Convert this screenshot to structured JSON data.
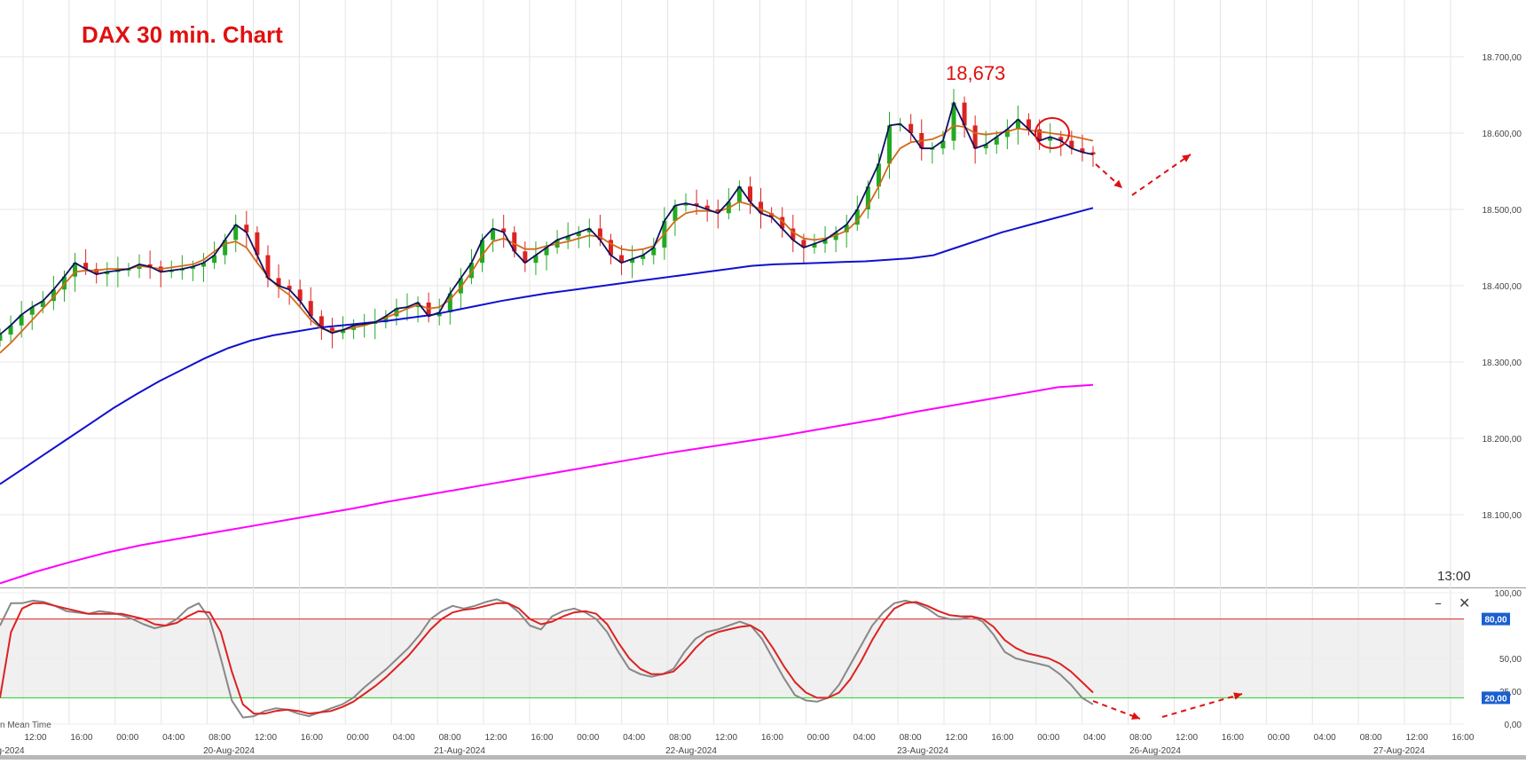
{
  "title": "DAX 30 min. Chart",
  "peak_label": "18,673",
  "time_label": "13:00",
  "footer_note": "n Mean Time",
  "chart_data": [
    {
      "type": "candlestick",
      "pane": "price",
      "title": "DAX 30 min. Chart",
      "annotations": [
        "18,673"
      ],
      "ylim": [
        18010,
        18750
      ],
      "y_ticks": [
        "18.100,00",
        "18.200,00",
        "18.300,00",
        "18.400,00",
        "18.500,00",
        "18.600,00",
        "18.700,00"
      ],
      "y_tick_values": [
        18100,
        18200,
        18300,
        18400,
        18500,
        18600,
        18700
      ],
      "x_tick_labels": [
        "12:00",
        "16:00",
        "00:00",
        "04:00",
        "08:00",
        "12:00",
        "16:00",
        "00:00",
        "04:00",
        "08:00",
        "12:00",
        "16:00",
        "00:00",
        "04:00",
        "08:00",
        "12:00",
        "16:00",
        "00:00",
        "04:00",
        "08:00",
        "12:00",
        "16:00",
        "00:00",
        "04:00",
        "08:00",
        "12:00",
        "16:00",
        "00:00",
        "04:00",
        "08:00",
        "12:00",
        "16:00"
      ],
      "date_labels": [
        "g-2024",
        "20-Aug-2024",
        "21-Aug-2024",
        "22-Aug-2024",
        "23-Aug-2024",
        "26-Aug-2024",
        "27-Aug-2024"
      ],
      "colors": {
        "up": "#22aa22",
        "down": "#dd2222",
        "wick": "#555555",
        "short_ma": "#101060",
        "mid_ma": "#d06b1d",
        "ma_long": "#1010d0",
        "ma_longest": "#ff00ff",
        "annotation": "#e01010"
      },
      "series": [
        {
          "name": "",
          "color": "#101060",
          "role": "close-line",
          "values": [
            18336,
            18348,
            18362,
            18372,
            18380,
            18395,
            18412,
            18430,
            18422,
            18415,
            18418,
            18420,
            18422,
            18428,
            18425,
            18418,
            18420,
            18422,
            18425,
            18430,
            18440,
            18460,
            18480,
            18470,
            18440,
            18410,
            18400,
            18395,
            18380,
            18360,
            18345,
            18338,
            18342,
            18348,
            18350,
            18352,
            18360,
            18370,
            18372,
            18378,
            18360,
            18365,
            18390,
            18410,
            18430,
            18460,
            18475,
            18470,
            18445,
            18430,
            18440,
            18450,
            18460,
            18465,
            18470,
            18475,
            18460,
            18440,
            18430,
            18435,
            18440,
            18450,
            18485,
            18505,
            18508,
            18505,
            18500,
            18495,
            18510,
            18530,
            18510,
            18495,
            18490,
            18475,
            18460,
            18450,
            18455,
            18460,
            18470,
            18480,
            18500,
            18530,
            18560,
            18610,
            18612,
            18600,
            18580,
            18580,
            18590,
            18640,
            18610,
            18580,
            18585,
            18595,
            18605,
            18618,
            18605,
            18590,
            18595,
            18590,
            18580,
            18575,
            18572
          ]
        },
        {
          "name": "",
          "color": "#d06b1d",
          "role": "short-ma",
          "values": [
            18312,
            18325,
            18340,
            18355,
            18370,
            18385,
            18402,
            18418,
            18420,
            18420,
            18422,
            18422,
            18422,
            18426,
            18424,
            18422,
            18424,
            18426,
            18428,
            18434,
            18445,
            18455,
            18458,
            18450,
            18430,
            18412,
            18398,
            18388,
            18372,
            18355,
            18344,
            18340,
            18342,
            18345,
            18348,
            18352,
            18358,
            18364,
            18370,
            18375,
            18370,
            18372,
            18382,
            18398,
            18418,
            18440,
            18458,
            18462,
            18455,
            18448,
            18448,
            18452,
            18455,
            18458,
            18462,
            18466,
            18464,
            18455,
            18448,
            18446,
            18448,
            18452,
            18468,
            18485,
            18495,
            18498,
            18498,
            18497,
            18502,
            18510,
            18506,
            18500,
            18494,
            18485,
            18470,
            18462,
            18460,
            18462,
            18466,
            18472,
            18485,
            18505,
            18530,
            18560,
            18580,
            18588,
            18590,
            18592,
            18598,
            18610,
            18608,
            18600,
            18598,
            18600,
            18602,
            18606,
            18604,
            18602,
            18600,
            18598,
            18596,
            18593,
            18590
          ]
        },
        {
          "name": "",
          "color": "#1010d0",
          "role": "long-ma",
          "values": [
            18140,
            18160,
            18180,
            18200,
            18220,
            18240,
            18258,
            18275,
            18290,
            18305,
            18318,
            18328,
            18335,
            18340,
            18345,
            18348,
            18351,
            18354,
            18358,
            18362,
            18368,
            18374,
            18380,
            18385,
            18390,
            18394,
            18398,
            18402,
            18406,
            18410,
            18414,
            18418,
            18422,
            18426,
            18428,
            18429,
            18430,
            18431,
            18432,
            18434,
            18436,
            18440,
            18450,
            18460,
            18470,
            18478,
            18486,
            18494,
            18502
          ]
        },
        {
          "name": "",
          "color": "#ff00ff",
          "role": "longest-ma",
          "values": [
            18010,
            18025,
            18038,
            18050,
            18060,
            18068,
            18076,
            18084,
            18092,
            18100,
            18108,
            18117,
            18125,
            18133,
            18141,
            18149,
            18157,
            18165,
            18173,
            18181,
            18188,
            18195,
            18202,
            18210,
            18218,
            18226,
            18235,
            18243,
            18251,
            18259,
            18267,
            18270
          ]
        }
      ]
    },
    {
      "type": "line",
      "pane": "stochastic",
      "ylim": [
        0,
        100
      ],
      "y_ticks": [
        "0,00",
        "25,00",
        "50,00",
        "100,00"
      ],
      "y_tick_values": [
        0,
        25,
        50,
        100
      ],
      "levels": [
        {
          "label": "80,00",
          "value": 80,
          "color": "#dd2222"
        },
        {
          "label": "20,00",
          "value": 20,
          "color": "#22cc22"
        }
      ],
      "series": [
        {
          "name": "",
          "color": "#888888",
          "values": [
            75,
            92,
            92,
            94,
            93,
            90,
            86,
            85,
            84,
            86,
            85,
            83,
            80,
            76,
            73,
            75,
            80,
            88,
            92,
            80,
            50,
            18,
            5,
            6,
            10,
            12,
            11,
            8,
            6,
            9,
            12,
            15,
            20,
            28,
            35,
            42,
            50,
            58,
            68,
            80,
            86,
            90,
            88,
            90,
            93,
            95,
            92,
            85,
            75,
            72,
            82,
            86,
            88,
            85,
            80,
            70,
            55,
            42,
            38,
            36,
            38,
            42,
            55,
            65,
            70,
            72,
            75,
            78,
            75,
            65,
            50,
            35,
            22,
            18,
            17,
            20,
            30,
            45,
            60,
            75,
            85,
            92,
            94,
            92,
            88,
            82,
            80,
            80,
            82,
            78,
            68,
            55,
            50,
            48,
            46,
            44,
            38,
            30,
            20,
            15
          ]
        },
        {
          "name": "",
          "color": "#dd2222",
          "values": [
            20,
            70,
            88,
            92,
            92,
            90,
            88,
            86,
            84,
            84,
            84,
            84,
            82,
            80,
            76,
            75,
            77,
            82,
            86,
            85,
            70,
            40,
            15,
            8,
            8,
            10,
            11,
            10,
            8,
            9,
            10,
            13,
            17,
            23,
            29,
            36,
            44,
            52,
            62,
            72,
            80,
            85,
            87,
            88,
            90,
            92,
            92,
            88,
            80,
            76,
            78,
            82,
            85,
            86,
            84,
            76,
            62,
            50,
            42,
            38,
            38,
            40,
            48,
            58,
            66,
            70,
            72,
            74,
            75,
            70,
            58,
            44,
            32,
            24,
            20,
            20,
            24,
            34,
            48,
            64,
            78,
            88,
            92,
            93,
            90,
            86,
            83,
            82,
            82,
            80,
            74,
            64,
            58,
            54,
            52,
            50,
            46,
            40,
            32,
            24
          ]
        }
      ]
    }
  ]
}
